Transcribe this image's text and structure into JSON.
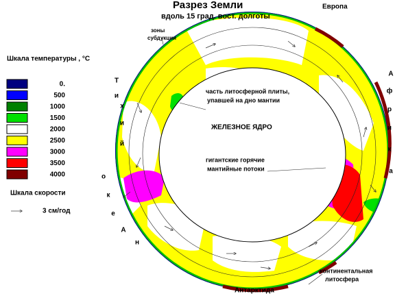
{
  "header": {
    "title": "Разрез Земли",
    "subtitle": "вдоль 15 град. вост. долготы"
  },
  "temperature_legend": {
    "title": "Шкала температуры , °C",
    "items": [
      {
        "label": "0.",
        "color": "#000080"
      },
      {
        "label": "500",
        "color": "#0000ff"
      },
      {
        "label": "1000",
        "color": "#008000"
      },
      {
        "label": "1500",
        "color": "#00e000"
      },
      {
        "label": "2000",
        "color": "#ffffff"
      },
      {
        "label": "2500",
        "color": "#ffff00"
      },
      {
        "label": "3000",
        "color": "#ff00ff"
      },
      {
        "label": "3500",
        "color": "#ff0000"
      },
      {
        "label": "4000",
        "color": "#800000"
      }
    ]
  },
  "velocity_legend": {
    "title": "Шкала скорости",
    "label": "3 см/год"
  },
  "annotations": {
    "subduction": [
      "зоны",
      "субдукции"
    ],
    "slab": [
      "часть литосферной плиты,",
      "упавшей на дно мантии"
    ],
    "core": "ЖЕЛЕЗНОЕ ЯДРО",
    "plumes": [
      "гигантские горячие",
      "мантийные потоки"
    ],
    "lithosphere": [
      "континентальная",
      "литосфера"
    ]
  },
  "places": {
    "europe": "Европа",
    "antarctica": "Антарктида",
    "africa": [
      "А",
      "ф",
      "р",
      "и",
      "к",
      "а"
    ],
    "pacific": [
      "Т",
      "и",
      "х",
      "и",
      "й",
      "о",
      "к",
      "е",
      "А",
      "н"
    ]
  }
}
